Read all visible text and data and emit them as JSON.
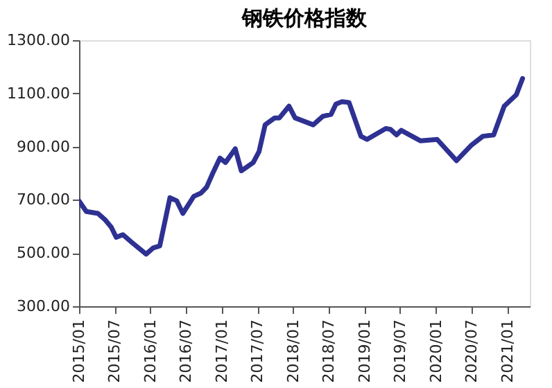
{
  "chart_data": {
    "type": "line",
    "title": "钢铁价格指数",
    "x": [
      "2015-01-01",
      "2015-02-07",
      "2015-04-07",
      "2015-05-13",
      "2015-06-15",
      "2015-07-10",
      "2015-08-13",
      "2015-09-28",
      "2015-12-10",
      "2016-01-15",
      "2016-02-18",
      "2016-04-10",
      "2016-05-15",
      "2016-06-15",
      "2016-08-10",
      "2016-09-15",
      "2016-10-15",
      "2016-11-15",
      "2016-12-22",
      "2017-01-19",
      "2017-03-10",
      "2017-04-10",
      "2017-06-10",
      "2017-07-10",
      "2017-08-10",
      "2017-09-28",
      "2017-10-22",
      "2017-12-10",
      "2018-01-10",
      "2018-04-13",
      "2018-06-01",
      "2018-07-13",
      "2018-08-07",
      "2018-09-07",
      "2018-10-13",
      "2018-12-13",
      "2019-01-13",
      "2019-04-19",
      "2019-05-13",
      "2019-06-13",
      "2019-07-07",
      "2019-10-13",
      "2020-01-07",
      "2020-04-15",
      "2020-06-28",
      "2020-08-28",
      "2020-10-22",
      "2020-12-15",
      "2021-02-15",
      "2021-03-19"
    ],
    "series": [
      {
        "color": "#2e3192",
        "values": [
          696,
          656,
          649,
          626,
          597,
          559,
          569,
          540,
          496,
          519,
          527,
          708,
          696,
          649,
          713,
          725,
          748,
          800,
          857,
          840,
          892,
          809,
          840,
          882,
          982,
          1008,
          1008,
          1052,
          1008,
          982,
          1014,
          1021,
          1060,
          1069,
          1066,
          939,
          927,
          968,
          965,
          944,
          961,
          922,
          927,
          847,
          904,
          939,
          944,
          1052,
          1095,
          1156
        ]
      }
    ],
    "xlim": [
      "2015-01-01",
      "2021-04-25"
    ],
    "xticks": [
      {
        "value": "2015-01-01",
        "label": "2015/01"
      },
      {
        "value": "2015-07-01",
        "label": "2015/07"
      },
      {
        "value": "2016-01-01",
        "label": "2016/01"
      },
      {
        "value": "2016-07-01",
        "label": "2016/07"
      },
      {
        "value": "2017-01-01",
        "label": "2017/01"
      },
      {
        "value": "2017-07-01",
        "label": "2017/07"
      },
      {
        "value": "2018-01-01",
        "label": "2018/01"
      },
      {
        "value": "2018-07-01",
        "label": "2018/07"
      },
      {
        "value": "2019-01-01",
        "label": "2019/01"
      },
      {
        "value": "2019-07-01",
        "label": "2019/07"
      },
      {
        "value": "2020-01-01",
        "label": "2020/01"
      },
      {
        "value": "2020-07-01",
        "label": "2020/07"
      },
      {
        "value": "2021-01-01",
        "label": "2021/01"
      }
    ],
    "ylim": [
      300,
      1300
    ],
    "yticks": [
      {
        "value": 300,
        "label": "300.00"
      },
      {
        "value": 500,
        "label": "500.00"
      },
      {
        "value": 700,
        "label": "700.00"
      },
      {
        "value": 900,
        "label": "900.00"
      },
      {
        "value": 1100,
        "label": "1100.00"
      },
      {
        "value": 1300,
        "label": "1300.00"
      }
    ],
    "grid": false,
    "marker": "none",
    "line_style": "solid"
  }
}
